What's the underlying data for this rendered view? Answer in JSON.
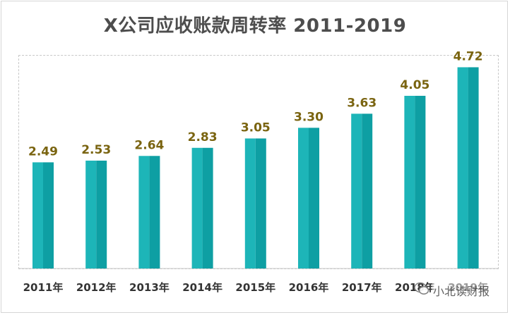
{
  "chart_data": {
    "type": "bar",
    "title": "X公司应收账款周转率 2011-2019",
    "categories": [
      "2011年",
      "2012年",
      "2013年",
      "2014年",
      "2015年",
      "2016年",
      "2017年",
      "2018年",
      "2019年"
    ],
    "values": [
      2.49,
      2.53,
      2.64,
      2.83,
      3.05,
      3.3,
      3.63,
      4.05,
      4.72
    ],
    "value_labels": [
      "2.49",
      "2.53",
      "2.64",
      "2.83",
      "3.05",
      "3.30",
      "3.63",
      "4.05",
      "4.72"
    ],
    "xlabel": "",
    "ylabel": "",
    "ylim": [
      0,
      5
    ],
    "grid": false,
    "legend": "none",
    "colors": {
      "bar_light": "#1db5b8",
      "bar_dark": "#0e9fa3",
      "value_label": "#7a6410",
      "title": "#4d4d4d"
    }
  },
  "watermark": {
    "text": "小北读财报",
    "icon": "wechat-icon"
  }
}
